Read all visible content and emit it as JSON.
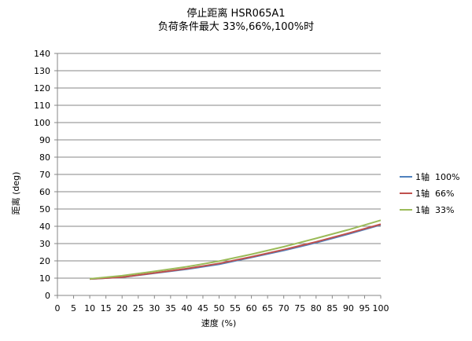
{
  "chart_data": {
    "type": "line",
    "title": "停止距离 HSR065A1",
    "subtitle": "负荷条件最大 33%,66%,100%时",
    "xlabel": "速度 (%)",
    "ylabel": "距离 (deg)",
    "xlim": [
      0,
      100
    ],
    "ylim": [
      0,
      140
    ],
    "x_ticks": [
      0,
      5,
      10,
      15,
      20,
      25,
      30,
      35,
      40,
      45,
      50,
      55,
      60,
      65,
      70,
      75,
      80,
      85,
      90,
      95,
      100
    ],
    "y_ticks": [
      0,
      10,
      20,
      30,
      40,
      50,
      60,
      70,
      80,
      90,
      100,
      110,
      120,
      130,
      140
    ],
    "grid": "horizontal",
    "legend_position": "right",
    "x": [
      10,
      20,
      30,
      40,
      50,
      60,
      70,
      80,
      90,
      100
    ],
    "series": [
      {
        "name": "1轴  100%",
        "color": "#4F81BD",
        "values": [
          9.5,
          10.5,
          12.8,
          15.2,
          18.0,
          22.0,
          26.0,
          30.5,
          35.5,
          40.8
        ]
      },
      {
        "name": "1轴  66%",
        "color": "#C0504D",
        "values": [
          9.5,
          10.6,
          13.0,
          15.5,
          18.5,
          22.3,
          26.5,
          31.0,
          36.0,
          41.2
        ]
      },
      {
        "name": "1轴  33%",
        "color": "#9BBB59",
        "values": [
          9.6,
          11.4,
          13.9,
          16.6,
          19.8,
          23.8,
          28.2,
          33.0,
          38.0,
          43.5
        ]
      }
    ]
  }
}
